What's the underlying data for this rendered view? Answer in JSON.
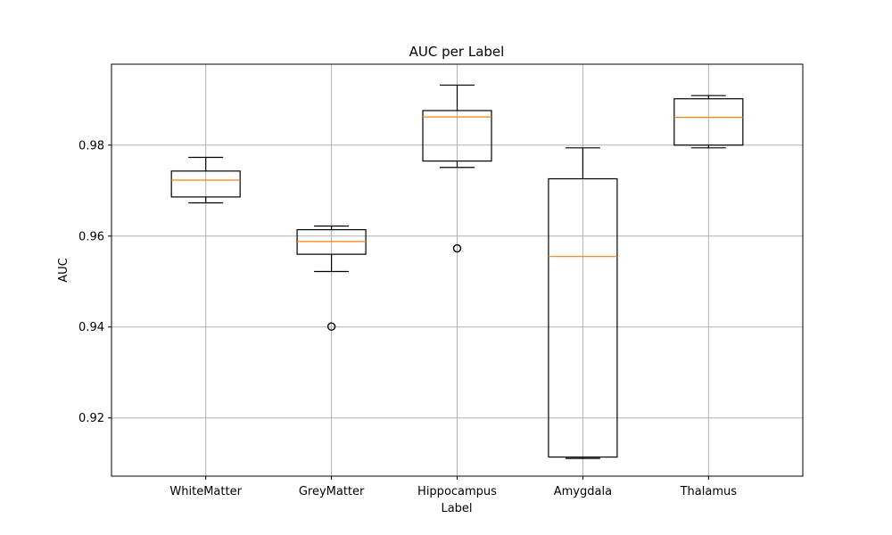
{
  "chart_data": {
    "type": "box",
    "title": "AUC per Label",
    "xlabel": "Label",
    "ylabel": "AUC",
    "categories": [
      "WhiteMatter",
      "GreyMatter",
      "Hippocampus",
      "Amygdala",
      "Thalamus"
    ],
    "ylim": [
      0.9072,
      0.9978
    ],
    "yticks": [
      0.92,
      0.94,
      0.96,
      0.98
    ],
    "ytick_labels": [
      "0.92",
      "0.94",
      "0.96",
      "0.98"
    ],
    "grid": true,
    "box_color": "#000000",
    "median_color": "#ff7f0e",
    "grid_color": "#b0b0b0",
    "boxes": [
      {
        "label": "WhiteMatter",
        "whisker_low": 0.9673,
        "q1": 0.9686,
        "median": 0.9723,
        "q3": 0.9743,
        "whisker_high": 0.9773,
        "outliers": []
      },
      {
        "label": "GreyMatter",
        "whisker_low": 0.9522,
        "q1": 0.956,
        "median": 0.9588,
        "q3": 0.9614,
        "whisker_high": 0.9622,
        "outliers": [
          0.9401
        ]
      },
      {
        "label": "Hippocampus",
        "whisker_low": 0.9751,
        "q1": 0.9765,
        "median": 0.9862,
        "q3": 0.9876,
        "whisker_high": 0.9932,
        "outliers": [
          0.9573
        ]
      },
      {
        "label": "Amygdala",
        "whisker_low": 0.9111,
        "q1": 0.9114,
        "median": 0.9555,
        "q3": 0.9726,
        "whisker_high": 0.9794,
        "outliers": []
      },
      {
        "label": "Thalamus",
        "whisker_low": 0.9794,
        "q1": 0.98,
        "median": 0.9861,
        "q3": 0.9902,
        "whisker_high": 0.9909,
        "outliers": []
      }
    ]
  }
}
